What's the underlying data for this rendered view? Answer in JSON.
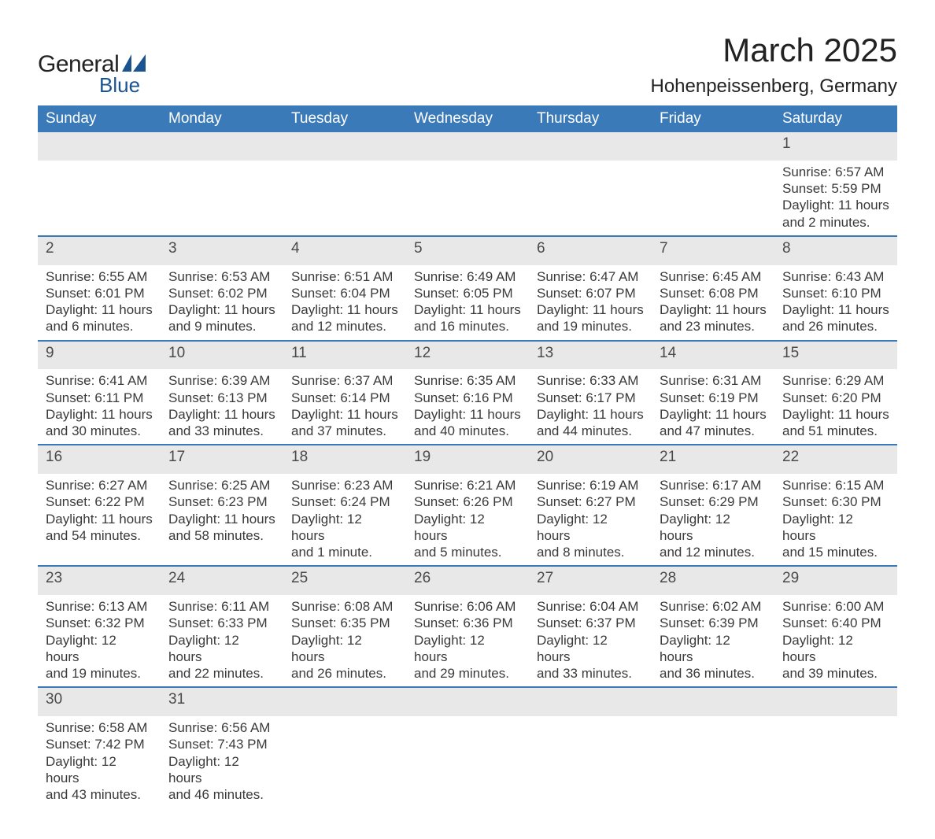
{
  "brand": {
    "text1": "General",
    "text2": "Blue"
  },
  "title": "March 2025",
  "location": "Hohenpeissenberg, Germany",
  "colors": {
    "header_bg": "#3a7ab8",
    "row_separator": "#3a7ab8",
    "daynum_bg": "#e8e8e8",
    "logo_blue": "#1a5490",
    "text": "#3a3a3a",
    "page_bg": "#ffffff"
  },
  "layout": {
    "columns": 7,
    "title_fontsize": 42,
    "location_fontsize": 24,
    "header_fontsize": 19,
    "cell_fontsize": 17
  },
  "weekdays": [
    "Sunday",
    "Monday",
    "Tuesday",
    "Wednesday",
    "Thursday",
    "Friday",
    "Saturday"
  ],
  "weeks": [
    [
      null,
      null,
      null,
      null,
      null,
      null,
      {
        "n": "1",
        "sr": "Sunrise: 6:57 AM",
        "ss": "Sunset: 5:59 PM",
        "d1": "Daylight: 11 hours",
        "d2": "and 2 minutes."
      }
    ],
    [
      {
        "n": "2",
        "sr": "Sunrise: 6:55 AM",
        "ss": "Sunset: 6:01 PM",
        "d1": "Daylight: 11 hours",
        "d2": "and 6 minutes."
      },
      {
        "n": "3",
        "sr": "Sunrise: 6:53 AM",
        "ss": "Sunset: 6:02 PM",
        "d1": "Daylight: 11 hours",
        "d2": "and 9 minutes."
      },
      {
        "n": "4",
        "sr": "Sunrise: 6:51 AM",
        "ss": "Sunset: 6:04 PM",
        "d1": "Daylight: 11 hours",
        "d2": "and 12 minutes."
      },
      {
        "n": "5",
        "sr": "Sunrise: 6:49 AM",
        "ss": "Sunset: 6:05 PM",
        "d1": "Daylight: 11 hours",
        "d2": "and 16 minutes."
      },
      {
        "n": "6",
        "sr": "Sunrise: 6:47 AM",
        "ss": "Sunset: 6:07 PM",
        "d1": "Daylight: 11 hours",
        "d2": "and 19 minutes."
      },
      {
        "n": "7",
        "sr": "Sunrise: 6:45 AM",
        "ss": "Sunset: 6:08 PM",
        "d1": "Daylight: 11 hours",
        "d2": "and 23 minutes."
      },
      {
        "n": "8",
        "sr": "Sunrise: 6:43 AM",
        "ss": "Sunset: 6:10 PM",
        "d1": "Daylight: 11 hours",
        "d2": "and 26 minutes."
      }
    ],
    [
      {
        "n": "9",
        "sr": "Sunrise: 6:41 AM",
        "ss": "Sunset: 6:11 PM",
        "d1": "Daylight: 11 hours",
        "d2": "and 30 minutes."
      },
      {
        "n": "10",
        "sr": "Sunrise: 6:39 AM",
        "ss": "Sunset: 6:13 PM",
        "d1": "Daylight: 11 hours",
        "d2": "and 33 minutes."
      },
      {
        "n": "11",
        "sr": "Sunrise: 6:37 AM",
        "ss": "Sunset: 6:14 PM",
        "d1": "Daylight: 11 hours",
        "d2": "and 37 minutes."
      },
      {
        "n": "12",
        "sr": "Sunrise: 6:35 AM",
        "ss": "Sunset: 6:16 PM",
        "d1": "Daylight: 11 hours",
        "d2": "and 40 minutes."
      },
      {
        "n": "13",
        "sr": "Sunrise: 6:33 AM",
        "ss": "Sunset: 6:17 PM",
        "d1": "Daylight: 11 hours",
        "d2": "and 44 minutes."
      },
      {
        "n": "14",
        "sr": "Sunrise: 6:31 AM",
        "ss": "Sunset: 6:19 PM",
        "d1": "Daylight: 11 hours",
        "d2": "and 47 minutes."
      },
      {
        "n": "15",
        "sr": "Sunrise: 6:29 AM",
        "ss": "Sunset: 6:20 PM",
        "d1": "Daylight: 11 hours",
        "d2": "and 51 minutes."
      }
    ],
    [
      {
        "n": "16",
        "sr": "Sunrise: 6:27 AM",
        "ss": "Sunset: 6:22 PM",
        "d1": "Daylight: 11 hours",
        "d2": "and 54 minutes."
      },
      {
        "n": "17",
        "sr": "Sunrise: 6:25 AM",
        "ss": "Sunset: 6:23 PM",
        "d1": "Daylight: 11 hours",
        "d2": "and 58 minutes."
      },
      {
        "n": "18",
        "sr": "Sunrise: 6:23 AM",
        "ss": "Sunset: 6:24 PM",
        "d1": "Daylight: 12 hours",
        "d2": "and 1 minute."
      },
      {
        "n": "19",
        "sr": "Sunrise: 6:21 AM",
        "ss": "Sunset: 6:26 PM",
        "d1": "Daylight: 12 hours",
        "d2": "and 5 minutes."
      },
      {
        "n": "20",
        "sr": "Sunrise: 6:19 AM",
        "ss": "Sunset: 6:27 PM",
        "d1": "Daylight: 12 hours",
        "d2": "and 8 minutes."
      },
      {
        "n": "21",
        "sr": "Sunrise: 6:17 AM",
        "ss": "Sunset: 6:29 PM",
        "d1": "Daylight: 12 hours",
        "d2": "and 12 minutes."
      },
      {
        "n": "22",
        "sr": "Sunrise: 6:15 AM",
        "ss": "Sunset: 6:30 PM",
        "d1": "Daylight: 12 hours",
        "d2": "and 15 minutes."
      }
    ],
    [
      {
        "n": "23",
        "sr": "Sunrise: 6:13 AM",
        "ss": "Sunset: 6:32 PM",
        "d1": "Daylight: 12 hours",
        "d2": "and 19 minutes."
      },
      {
        "n": "24",
        "sr": "Sunrise: 6:11 AM",
        "ss": "Sunset: 6:33 PM",
        "d1": "Daylight: 12 hours",
        "d2": "and 22 minutes."
      },
      {
        "n": "25",
        "sr": "Sunrise: 6:08 AM",
        "ss": "Sunset: 6:35 PM",
        "d1": "Daylight: 12 hours",
        "d2": "and 26 minutes."
      },
      {
        "n": "26",
        "sr": "Sunrise: 6:06 AM",
        "ss": "Sunset: 6:36 PM",
        "d1": "Daylight: 12 hours",
        "d2": "and 29 minutes."
      },
      {
        "n": "27",
        "sr": "Sunrise: 6:04 AM",
        "ss": "Sunset: 6:37 PM",
        "d1": "Daylight: 12 hours",
        "d2": "and 33 minutes."
      },
      {
        "n": "28",
        "sr": "Sunrise: 6:02 AM",
        "ss": "Sunset: 6:39 PM",
        "d1": "Daylight: 12 hours",
        "d2": "and 36 minutes."
      },
      {
        "n": "29",
        "sr": "Sunrise: 6:00 AM",
        "ss": "Sunset: 6:40 PM",
        "d1": "Daylight: 12 hours",
        "d2": "and 39 minutes."
      }
    ],
    [
      {
        "n": "30",
        "sr": "Sunrise: 6:58 AM",
        "ss": "Sunset: 7:42 PM",
        "d1": "Daylight: 12 hours",
        "d2": "and 43 minutes."
      },
      {
        "n": "31",
        "sr": "Sunrise: 6:56 AM",
        "ss": "Sunset: 7:43 PM",
        "d1": "Daylight: 12 hours",
        "d2": "and 46 minutes."
      },
      null,
      null,
      null,
      null,
      null
    ]
  ]
}
